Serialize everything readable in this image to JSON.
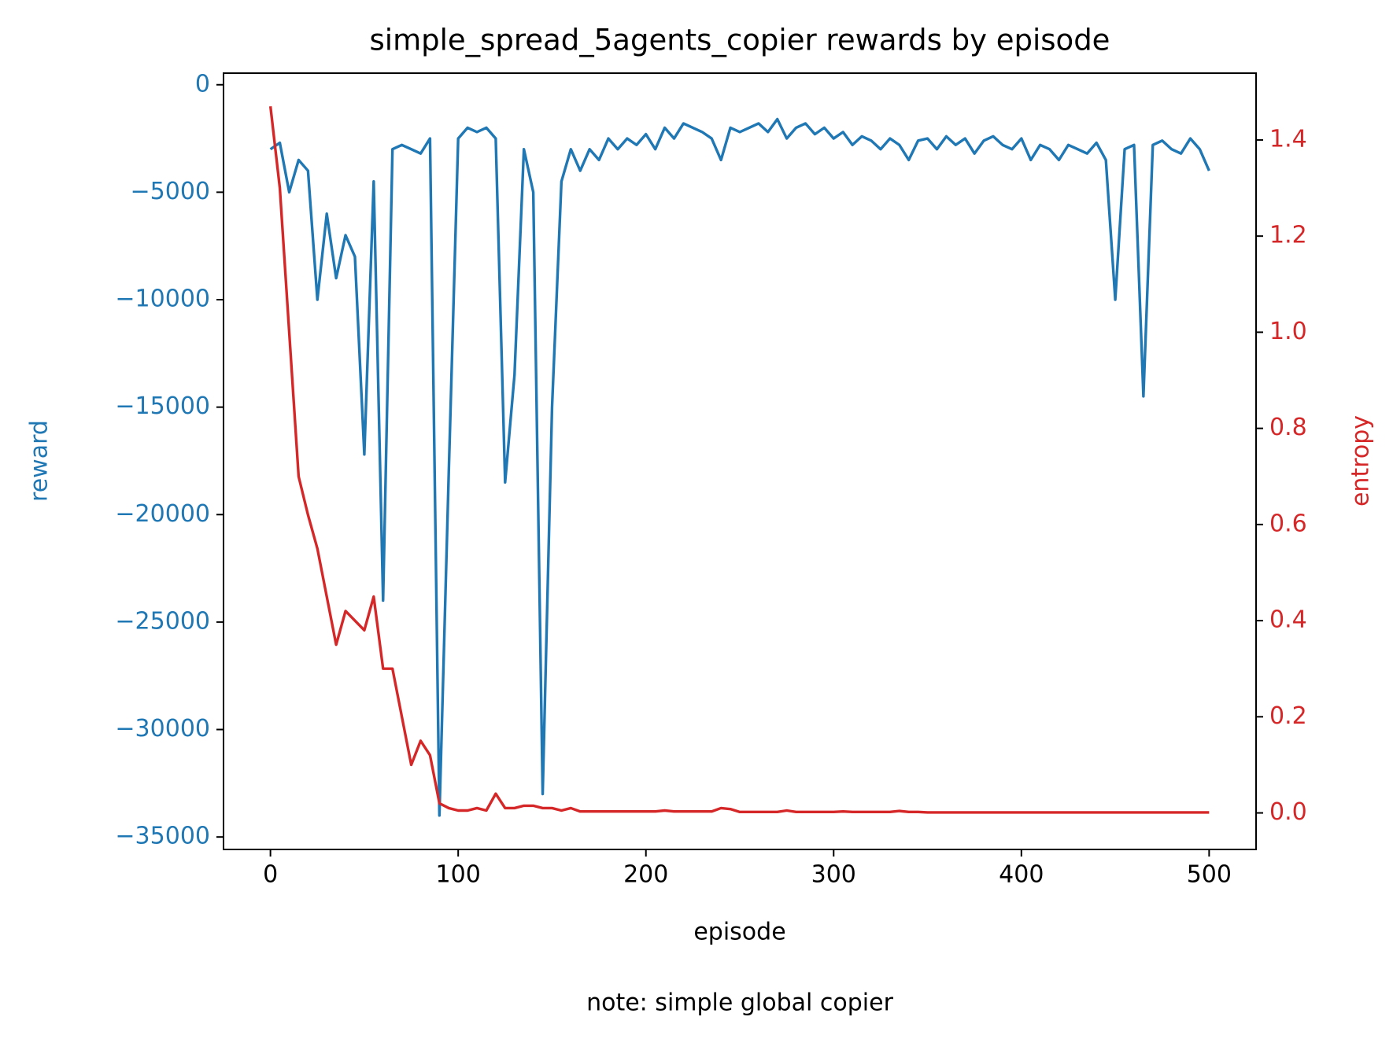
{
  "chart_data": {
    "type": "line",
    "title": "simple_spread_5agents_copier rewards by episode",
    "xlabel": "episode",
    "ylabel": "reward",
    "y2label": "entropy",
    "note": "note: simple global copier",
    "x": [
      0,
      5,
      10,
      15,
      20,
      25,
      30,
      35,
      40,
      45,
      50,
      55,
      60,
      65,
      70,
      75,
      80,
      85,
      90,
      95,
      100,
      105,
      110,
      115,
      120,
      125,
      130,
      135,
      140,
      145,
      150,
      155,
      160,
      165,
      170,
      175,
      180,
      185,
      190,
      195,
      200,
      205,
      210,
      215,
      220,
      225,
      230,
      235,
      240,
      245,
      250,
      255,
      260,
      265,
      270,
      275,
      280,
      285,
      290,
      295,
      300,
      305,
      310,
      315,
      320,
      325,
      330,
      335,
      340,
      345,
      350,
      355,
      360,
      365,
      370,
      375,
      380,
      385,
      390,
      395,
      400,
      405,
      410,
      415,
      420,
      425,
      430,
      435,
      440,
      445,
      450,
      455,
      460,
      465,
      470,
      475,
      480,
      485,
      490,
      495,
      500
    ],
    "series": [
      {
        "color": "#1f77b4",
        "axis": "y",
        "values": [
          -3000,
          -2700,
          -5000,
          -3500,
          -4000,
          -10000,
          -6000,
          -9000,
          -7000,
          -8000,
          -17200,
          -4500,
          -24000,
          -3000,
          -2800,
          -3000,
          -3200,
          -2500,
          -34000,
          -18000,
          -2500,
          -2000,
          -2200,
          -2000,
          -2500,
          -18500,
          -13500,
          -3000,
          -5000,
          -33000,
          -15000,
          -4500,
          -3000,
          -4000,
          -3000,
          -3500,
          -2500,
          -3000,
          -2500,
          -2800,
          -2300,
          -3000,
          -2000,
          -2500,
          -1800,
          -2000,
          -2200,
          -2500,
          -3500,
          -2000,
          -2200,
          -2000,
          -1800,
          -2200,
          -1600,
          -2500,
          -2000,
          -1800,
          -2300,
          -2000,
          -2500,
          -2200,
          -2800,
          -2400,
          -2600,
          -3000,
          -2500,
          -2800,
          -3500,
          -2600,
          -2500,
          -3000,
          -2400,
          -2800,
          -2500,
          -3200,
          -2600,
          -2400,
          -2800,
          -3000,
          -2500,
          -3500,
          -2800,
          -3000,
          -3500,
          -2800,
          -3000,
          -3200,
          -2700,
          -3500,
          -10000,
          -3000,
          -2800,
          -14500,
          -2800,
          -2600,
          -3000,
          -3200,
          -2500,
          -3000,
          -4000
        ]
      },
      {
        "color": "#d62728",
        "axis": "y2",
        "values": [
          1.47,
          1.3,
          1.0,
          0.7,
          0.62,
          0.55,
          0.45,
          0.35,
          0.42,
          0.4,
          0.38,
          0.45,
          0.3,
          0.3,
          0.2,
          0.1,
          0.15,
          0.12,
          0.02,
          0.01,
          0.005,
          0.005,
          0.01,
          0.005,
          0.04,
          0.01,
          0.01,
          0.015,
          0.015,
          0.01,
          0.01,
          0.005,
          0.01,
          0.003,
          0.003,
          0.003,
          0.003,
          0.003,
          0.003,
          0.003,
          0.003,
          0.003,
          0.005,
          0.003,
          0.003,
          0.003,
          0.003,
          0.003,
          0.01,
          0.008,
          0.002,
          0.002,
          0.002,
          0.002,
          0.002,
          0.005,
          0.002,
          0.002,
          0.002,
          0.002,
          0.002,
          0.003,
          0.002,
          0.002,
          0.002,
          0.002,
          0.002,
          0.004,
          0.002,
          0.002,
          0.001,
          0.001,
          0.001,
          0.001,
          0.001,
          0.001,
          0.001,
          0.001,
          0.001,
          0.001,
          0.001,
          0.001,
          0.001,
          0.001,
          0.001,
          0.001,
          0.001,
          0.001,
          0.001,
          0.001,
          0.001,
          0.001,
          0.001,
          0.001,
          0.001,
          0.001,
          0.001,
          0.001,
          0.001,
          0.001,
          0.001
        ]
      }
    ],
    "xlim": [
      -25,
      525
    ],
    "xticks": [
      0,
      100,
      200,
      300,
      400,
      500
    ],
    "ylim": [
      -35580,
      540
    ],
    "yticks": [
      0,
      {
        "value": -5000,
        "label": "−5000"
      },
      {
        "value": -10000,
        "label": "−10000"
      },
      {
        "value": -15000,
        "label": "−15000"
      },
      {
        "value": -20000,
        "label": "−20000"
      },
      {
        "value": -25000,
        "label": "−25000"
      },
      {
        "value": -30000,
        "label": "−30000"
      },
      {
        "value": -35000,
        "label": "−35000"
      }
    ],
    "y2lim": [
      -0.076,
      1.539
    ],
    "y2ticks": [
      {
        "value": 0,
        "label": "0.0"
      },
      0.2,
      0.4,
      0.6,
      0.8,
      {
        "value": 1,
        "label": "1.0"
      },
      1.2,
      1.4
    ],
    "grid": false
  }
}
